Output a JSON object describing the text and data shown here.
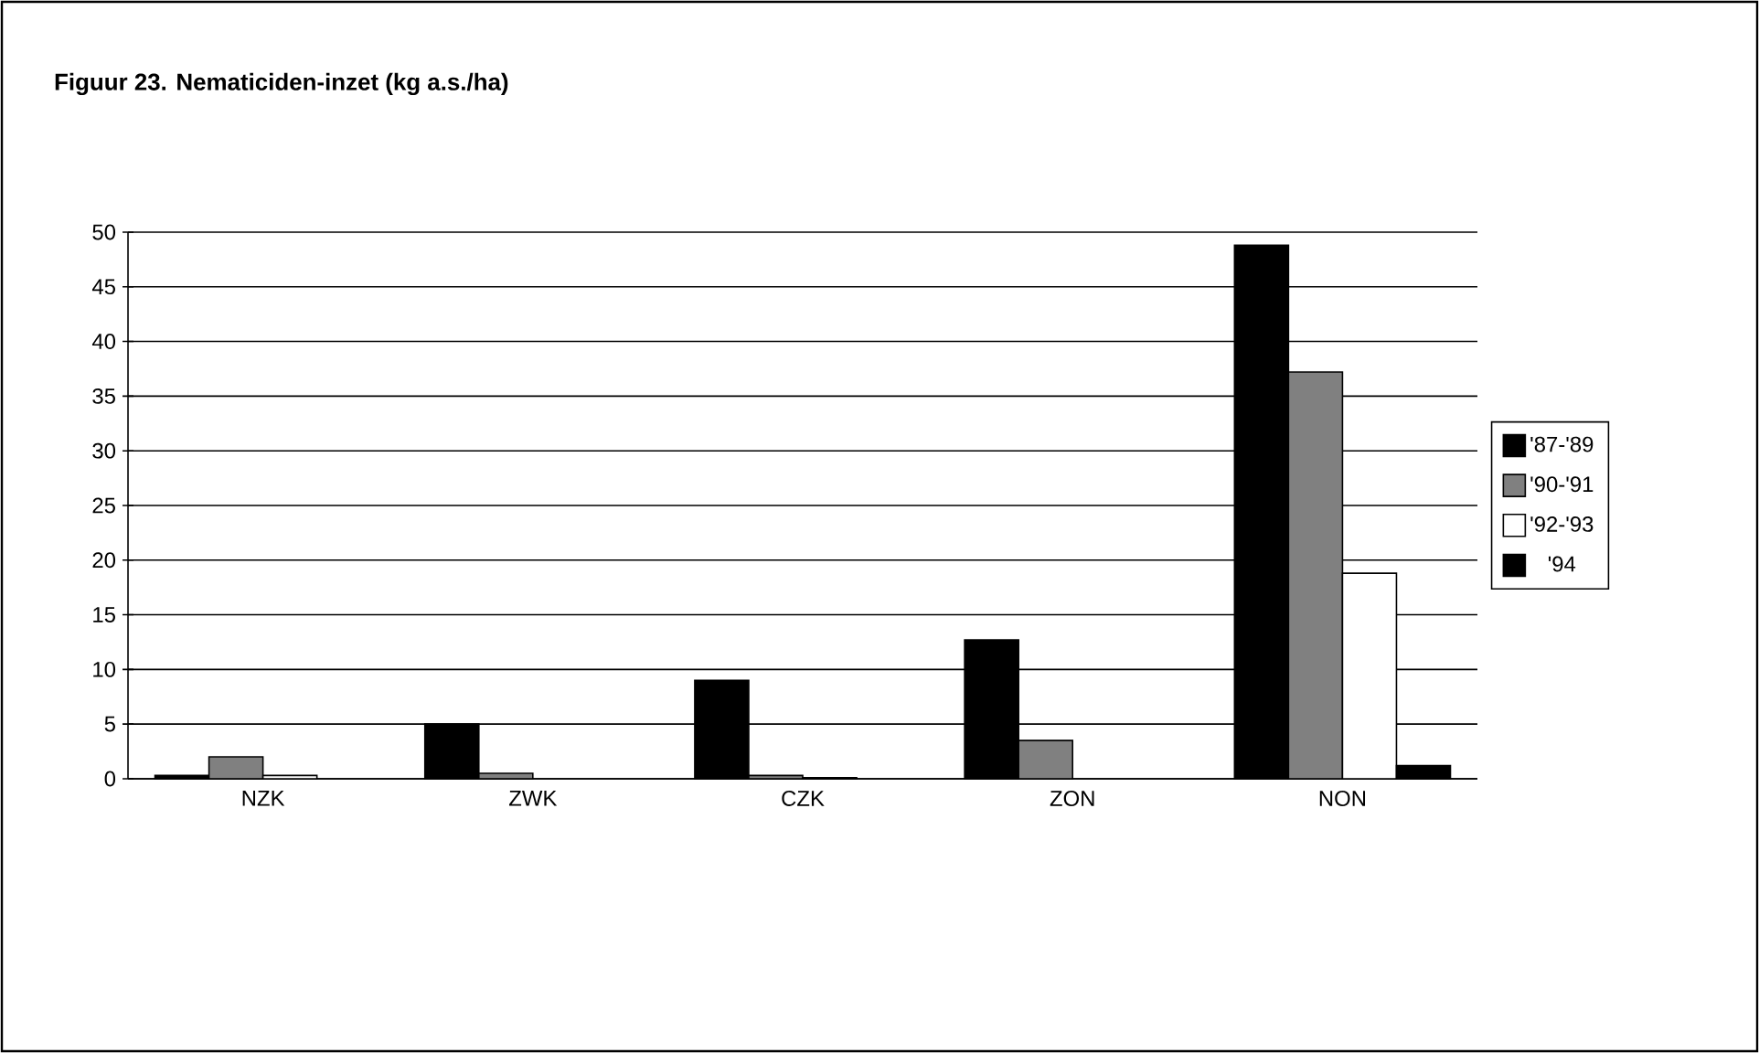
{
  "chart_data": {
    "type": "bar",
    "title": "Figuur 23. Nematiciden-inzet (kg a.s./ha)",
    "categories": [
      "NZK",
      "ZWK",
      "CZK",
      "ZON",
      "NON"
    ],
    "series": [
      {
        "name": "'87-'89",
        "color": "#000000",
        "values": [
          0.3,
          5,
          9,
          12.7,
          48.8
        ]
      },
      {
        "name": "'90-'91",
        "color": "#808080",
        "values": [
          2,
          0.5,
          0.3,
          3.5,
          37.2
        ]
      },
      {
        "name": "'92-'93",
        "color": "#ffffff",
        "values": [
          0.3,
          null,
          0.1,
          null,
          18.8
        ]
      },
      {
        "name": "'94",
        "color": "#000000",
        "values": [
          null,
          null,
          null,
          null,
          1.2
        ]
      }
    ],
    "ylim": [
      0,
      50
    ],
    "yticks": [
      0,
      5,
      10,
      15,
      20,
      25,
      30,
      35,
      40,
      45,
      50
    ],
    "grid": "y",
    "legend": "right"
  }
}
